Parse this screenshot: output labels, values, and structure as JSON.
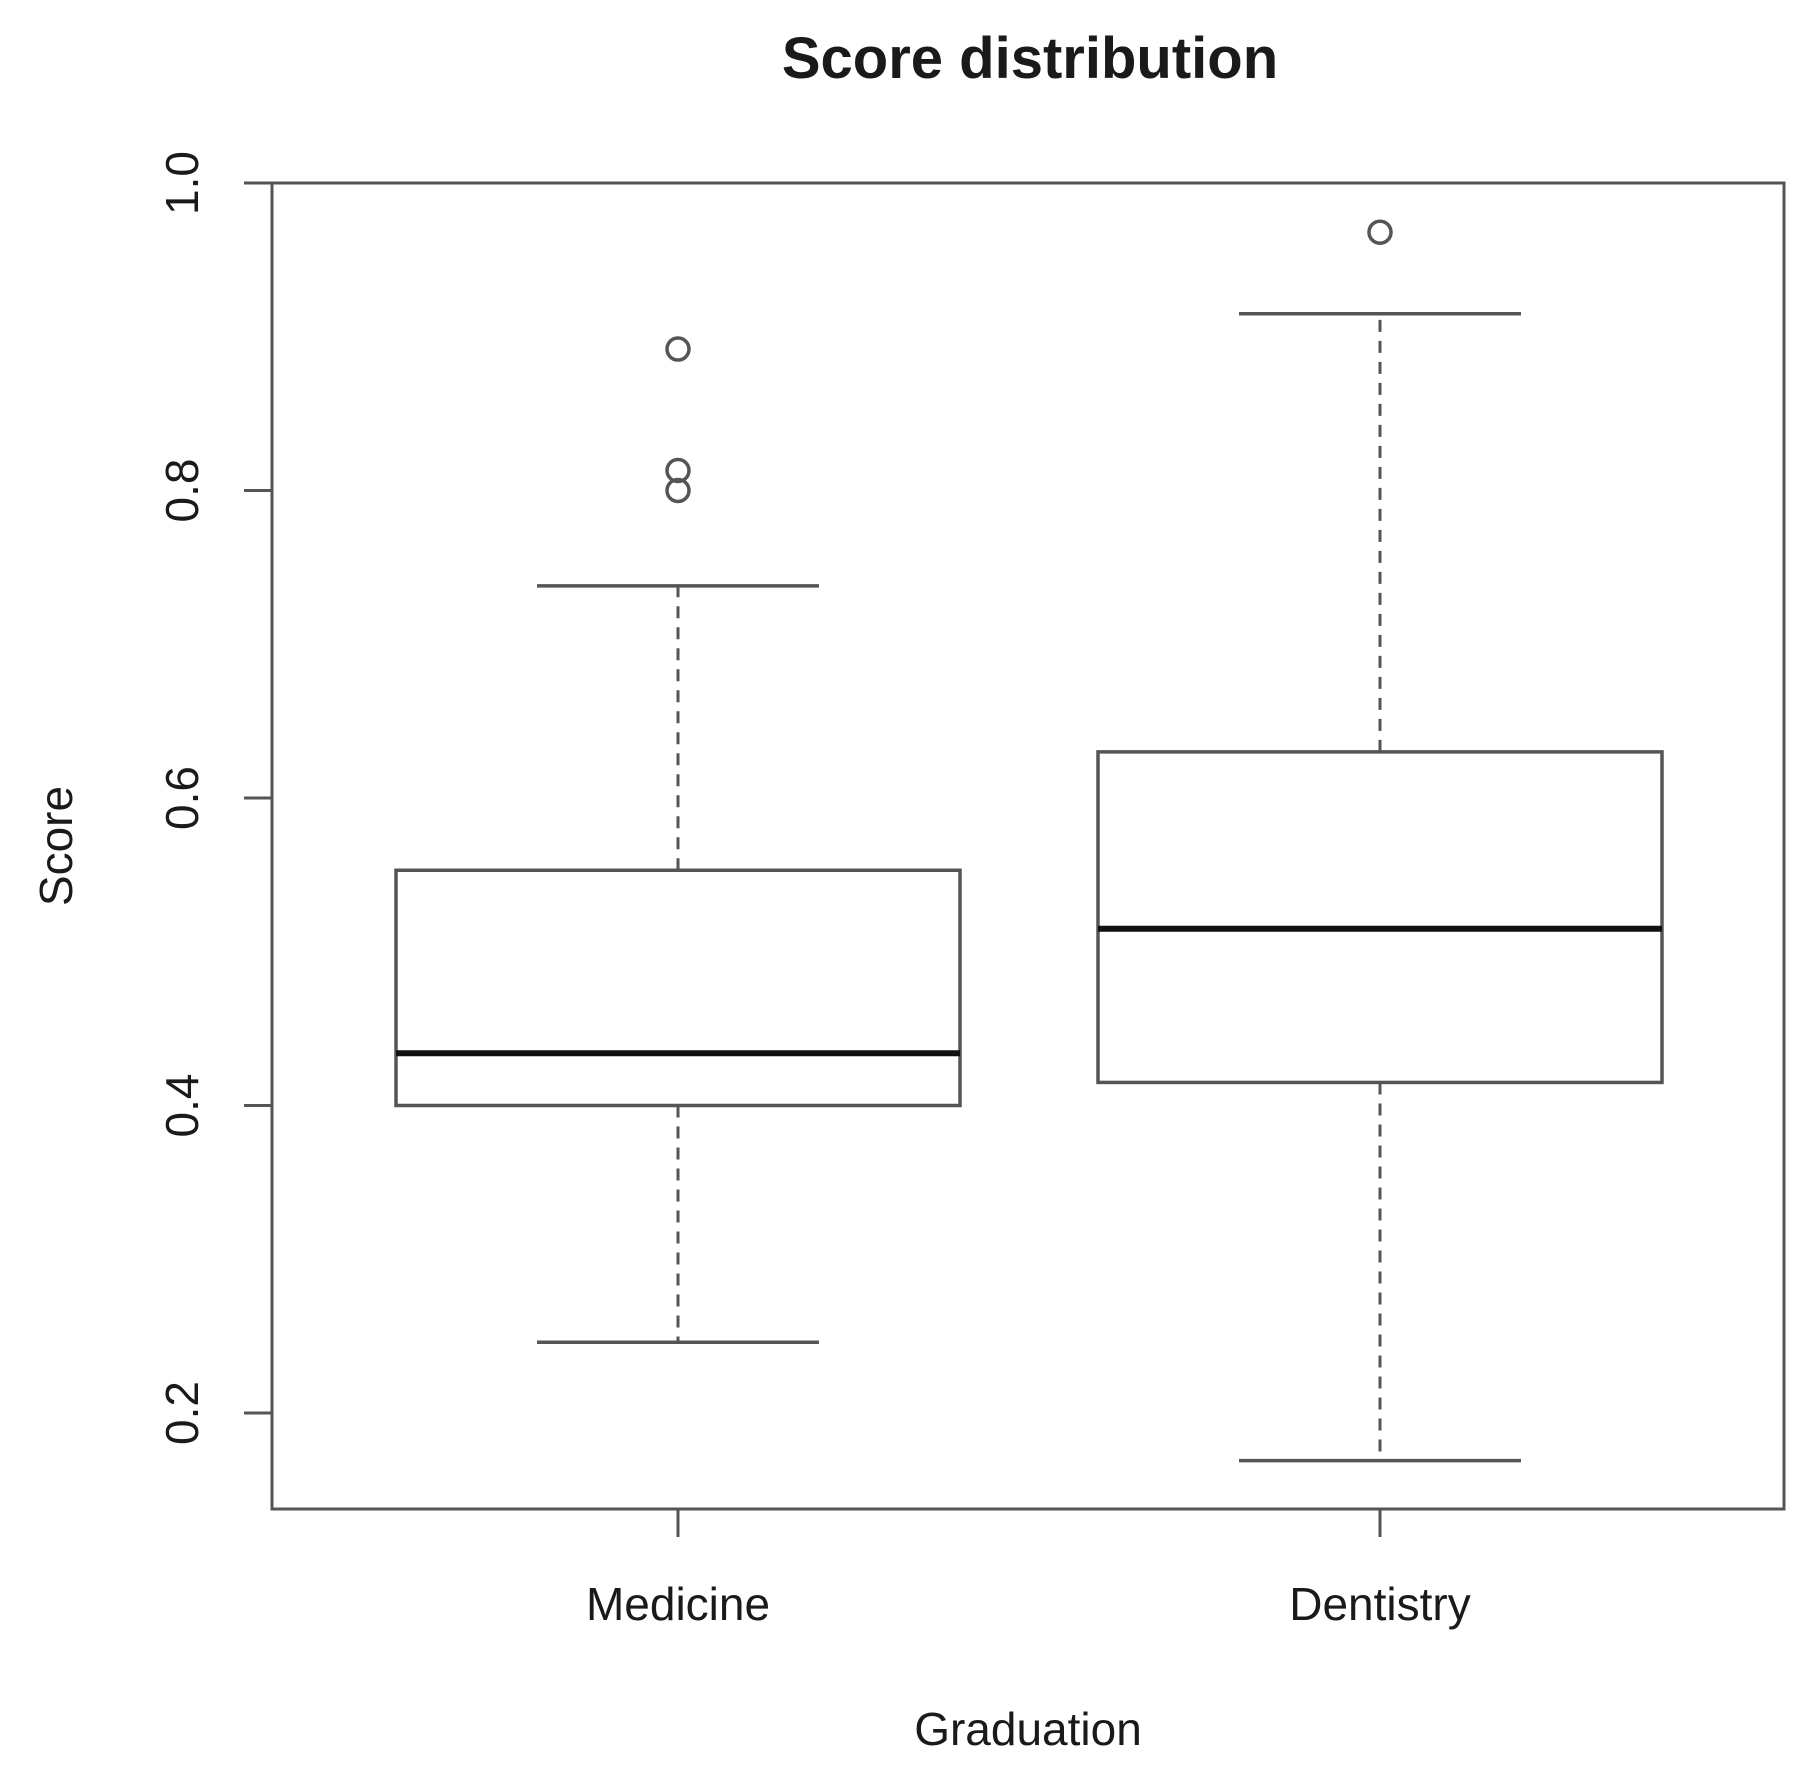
{
  "chart_data": {
    "type": "boxplot",
    "title": "Score distribution",
    "xlabel": "Graduation",
    "ylabel": "Score",
    "ylim": [
      0.135,
      1.0
    ],
    "yticks": [
      0.2,
      0.4,
      0.6,
      0.8,
      1.0
    ],
    "ytick_labels": [
      "0.2",
      "0.4",
      "0.6",
      "0.8",
      "1.0"
    ],
    "categories": [
      "Medicine",
      "Dentistry"
    ],
    "grid": false,
    "legend": "none",
    "boxes": [
      {
        "category": "Medicine",
        "whisker_low": 0.246,
        "q1": 0.4,
        "median": 0.434,
        "q3": 0.553,
        "whisker_high": 0.738,
        "outliers": [
          0.8,
          0.813,
          0.892
        ]
      },
      {
        "category": "Dentistry",
        "whisker_low": 0.169,
        "q1": 0.415,
        "median": 0.515,
        "q3": 0.63,
        "whisker_high": 0.915,
        "outliers": [
          0.968
        ]
      }
    ]
  }
}
